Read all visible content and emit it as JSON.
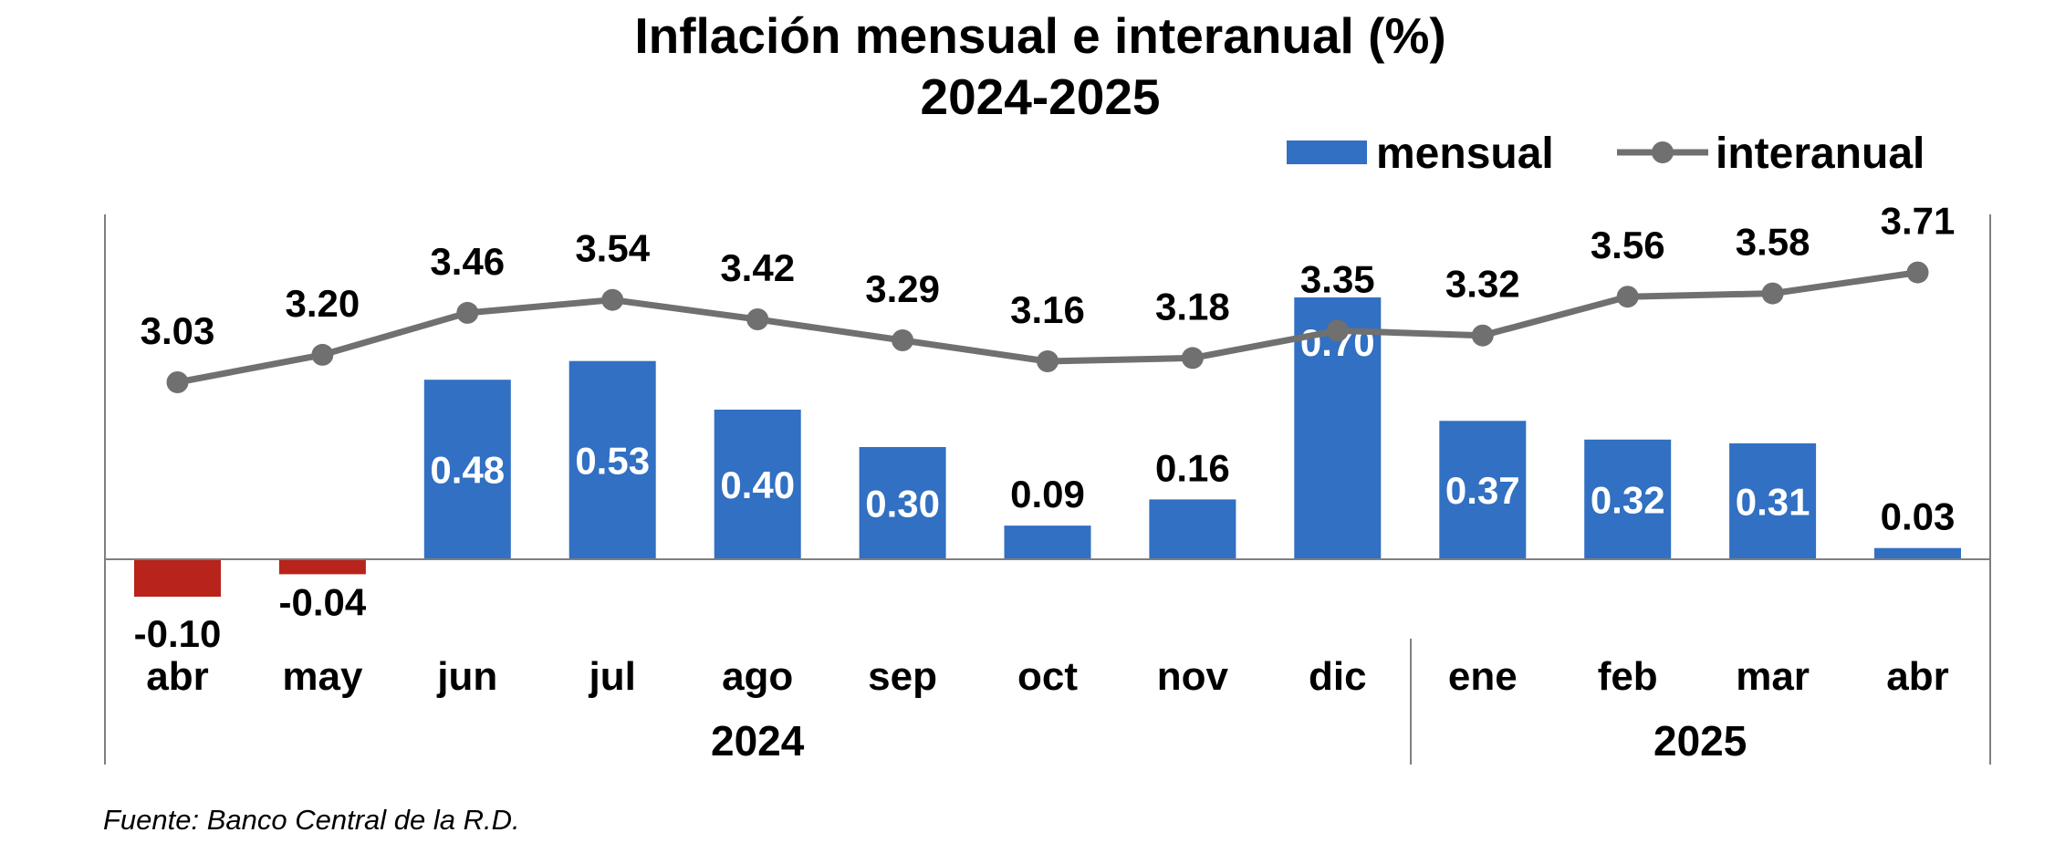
{
  "chart_data": {
    "type": "bar",
    "title": "Inflación mensual e interanual (%)",
    "subtitle": "2024-2025",
    "categories": [
      "abr",
      "may",
      "jun",
      "jul",
      "ago",
      "sep",
      "oct",
      "nov",
      "dic",
      "ene",
      "feb",
      "mar",
      "abr"
    ],
    "groups": [
      {
        "label": "2024",
        "count": 9
      },
      {
        "label": "2025",
        "count": 4
      }
    ],
    "series": [
      {
        "name": "mensual",
        "type": "bar",
        "color": "#3170c2",
        "negative_color": "#b8231b",
        "values": [
          -0.1,
          -0.04,
          0.48,
          0.53,
          0.4,
          0.3,
          0.09,
          0.16,
          0.7,
          0.37,
          0.32,
          0.31,
          0.03
        ],
        "labels": [
          "-0.10",
          "-0.04",
          "0.48",
          "0.53",
          "0.40",
          "0.30",
          "0.09",
          "0.16",
          "0.70",
          "0.37",
          "0.32",
          "0.31",
          "0.03"
        ]
      },
      {
        "name": "interanual",
        "type": "line",
        "color": "#707070",
        "values": [
          3.03,
          3.2,
          3.46,
          3.54,
          3.42,
          3.29,
          3.16,
          3.18,
          3.35,
          3.32,
          3.56,
          3.58,
          3.71
        ],
        "labels": [
          "3.03",
          "3.20",
          "3.46",
          "3.54",
          "3.42",
          "3.29",
          "3.16",
          "3.18",
          "3.35",
          "3.32",
          "3.56",
          "3.58",
          "3.71"
        ]
      }
    ],
    "legend_position": "top-right",
    "grid": false,
    "source": "Fuente: Banco Central de la R.D."
  }
}
